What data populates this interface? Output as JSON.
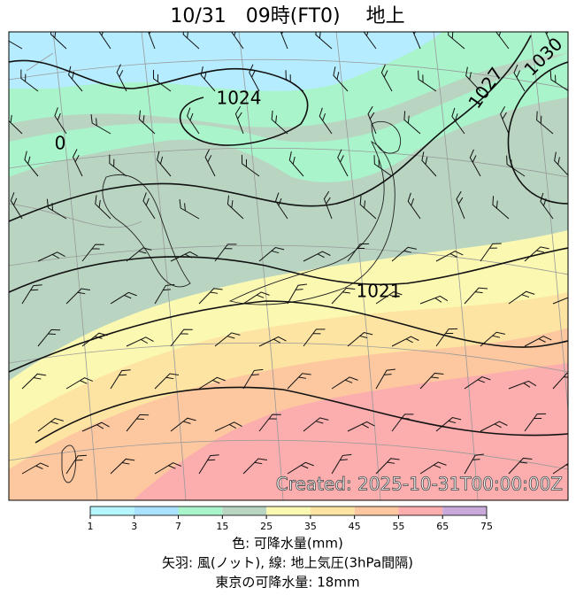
{
  "header": {
    "title": "10/31　09時(FT0)　 地上"
  },
  "map": {
    "contour_labels": [
      "1024",
      "1021",
      "1027",
      "1030",
      "0"
    ],
    "created": "Created: 2025-10-31T00:00:00Z"
  },
  "colorbar": {
    "ticks": [
      1,
      3,
      7,
      15,
      25,
      35,
      45,
      55,
      65,
      75
    ],
    "colors": [
      "#b5f6ff",
      "#a9e2ff",
      "#a9f4cb",
      "#b9d5c2",
      "#fbf8b2",
      "#fde4a2",
      "#fdc8a0",
      "#fcadad",
      "#c9a9d9"
    ]
  },
  "captions": [
    "色: 可降水量(mm)",
    "矢羽: 風(ノット), 線: 地上気圧(3hPa間隔)",
    "東京の可降水量: 18mm"
  ]
}
